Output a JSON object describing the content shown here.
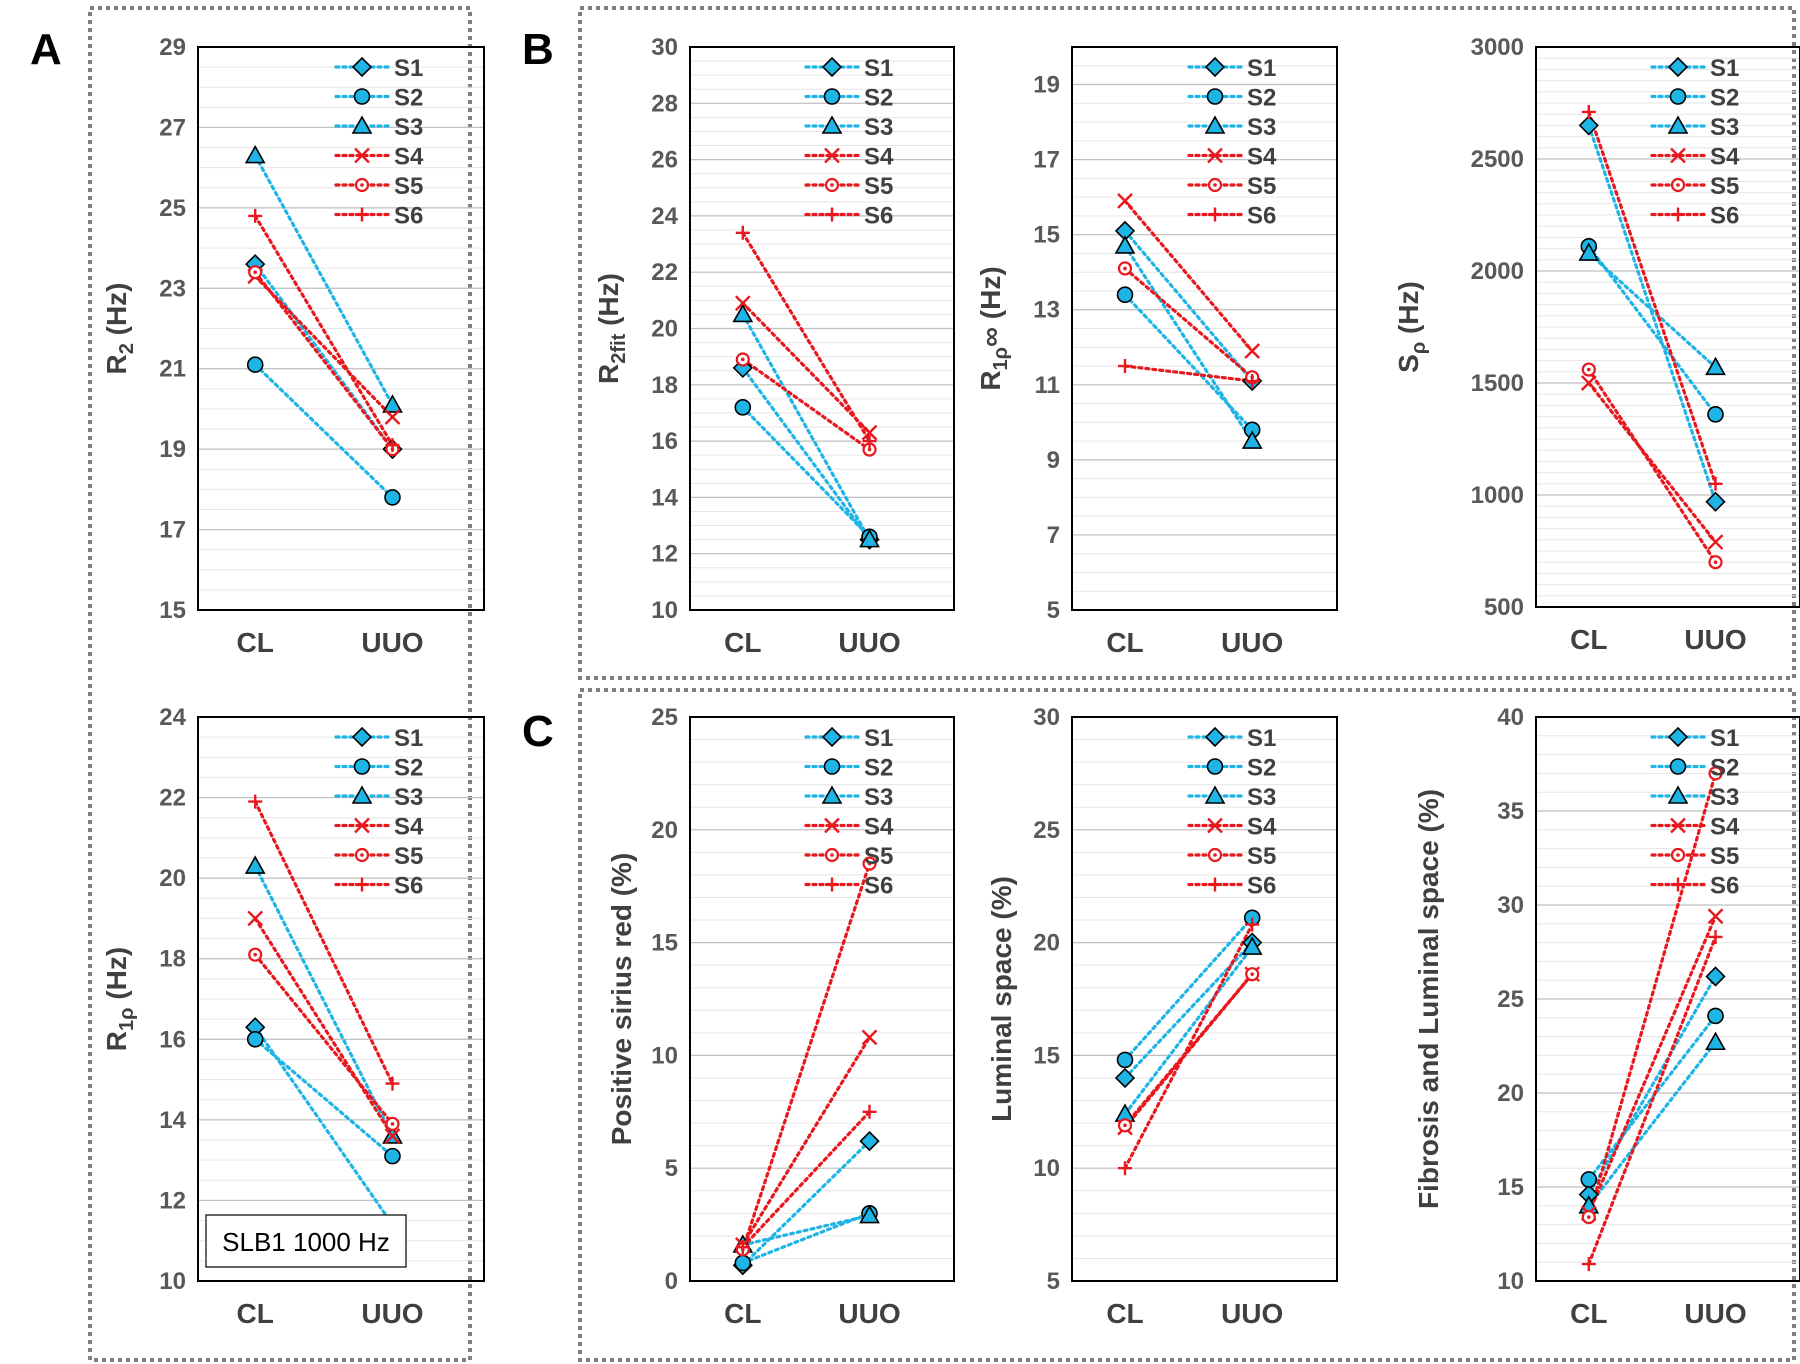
{
  "figure": {
    "panel_labels": [
      "A",
      "B",
      "C"
    ],
    "categories": [
      "CL",
      "UUO"
    ],
    "annotation": "SLB1 1000 Hz",
    "series": [
      {
        "name": "S1",
        "color": "#1fb4e6",
        "marker": "diamond"
      },
      {
        "name": "S2",
        "color": "#1fb4e6",
        "marker": "circle"
      },
      {
        "name": "S3",
        "color": "#1fb4e6",
        "marker": "triangle"
      },
      {
        "name": "S4",
        "color": "#e8191e",
        "marker": "x"
      },
      {
        "name": "S5",
        "color": "#e8191e",
        "marker": "open-circle"
      },
      {
        "name": "S6",
        "color": "#e8191e",
        "marker": "plus"
      }
    ]
  },
  "chart_data": [
    {
      "type": "line",
      "panel": "A",
      "ylabel": "R2 (Hz)",
      "ylabel_main": "R",
      "ylabel_sub": "2",
      "ylabel_rest": " (Hz)",
      "categories": [
        "CL",
        "UUO"
      ],
      "ylim": [
        15,
        29
      ],
      "yticks": [
        15,
        17,
        19,
        21,
        23,
        25,
        27,
        29
      ],
      "minor_step": 0.5,
      "series": [
        {
          "name": "S1",
          "values": [
            23.6,
            19.0
          ]
        },
        {
          "name": "S2",
          "values": [
            21.1,
            17.8
          ]
        },
        {
          "name": "S3",
          "values": [
            26.3,
            20.1
          ]
        },
        {
          "name": "S4",
          "values": [
            23.3,
            19.8
          ]
        },
        {
          "name": "S5",
          "values": [
            23.4,
            19.0
          ]
        },
        {
          "name": "S6",
          "values": [
            24.8,
            19.1
          ]
        }
      ]
    },
    {
      "type": "line",
      "panel": "A",
      "ylabel": "R1ρ (Hz)",
      "ylabel_main": "R",
      "ylabel_sub": "1ρ",
      "ylabel_rest": " (Hz)",
      "categories": [
        "CL",
        "UUO"
      ],
      "ylim": [
        10,
        24
      ],
      "yticks": [
        10,
        12,
        14,
        16,
        18,
        20,
        22,
        24
      ],
      "minor_step": 0.5,
      "annotation": true,
      "series": [
        {
          "name": "S1",
          "values": [
            16.3,
            11.4
          ]
        },
        {
          "name": "S2",
          "values": [
            16.0,
            13.1
          ]
        },
        {
          "name": "S3",
          "values": [
            20.3,
            13.6
          ]
        },
        {
          "name": "S4",
          "values": [
            19.0,
            13.6
          ]
        },
        {
          "name": "S5",
          "values": [
            18.1,
            13.9
          ]
        },
        {
          "name": "S6",
          "values": [
            21.9,
            14.9
          ]
        }
      ]
    },
    {
      "type": "line",
      "panel": "B",
      "ylabel": "R2fit (Hz)",
      "ylabel_main": "R",
      "ylabel_sub": "2fit",
      "ylabel_rest": " (Hz)",
      "categories": [
        "CL",
        "UUO"
      ],
      "ylim": [
        10,
        30
      ],
      "yticks": [
        10,
        12,
        14,
        16,
        18,
        20,
        22,
        24,
        26,
        28,
        30
      ],
      "minor_step": 0.5,
      "series": [
        {
          "name": "S1",
          "values": [
            18.6,
            12.5
          ]
        },
        {
          "name": "S2",
          "values": [
            17.2,
            12.6
          ]
        },
        {
          "name": "S3",
          "values": [
            20.5,
            12.5
          ]
        },
        {
          "name": "S4",
          "values": [
            20.9,
            16.3
          ]
        },
        {
          "name": "S5",
          "values": [
            18.9,
            15.7
          ]
        },
        {
          "name": "S6",
          "values": [
            23.4,
            16.0
          ]
        }
      ]
    },
    {
      "type": "line",
      "panel": "B",
      "ylabel": "R1ρ∞ (Hz)",
      "ylabel_main": "R",
      "ylabel_sub": "1ρ",
      "ylabel_rest": "∞ (Hz)",
      "categories": [
        "CL",
        "UUO"
      ],
      "ylim": [
        5,
        20
      ],
      "yticks": [
        5,
        7,
        9,
        11,
        13,
        15,
        17,
        19
      ],
      "minor_step": 0.5,
      "series": [
        {
          "name": "S1",
          "values": [
            15.1,
            11.1
          ]
        },
        {
          "name": "S2",
          "values": [
            13.4,
            9.8
          ]
        },
        {
          "name": "S3",
          "values": [
            14.7,
            9.5
          ]
        },
        {
          "name": "S4",
          "values": [
            15.9,
            11.9
          ]
        },
        {
          "name": "S5",
          "values": [
            14.1,
            11.2
          ]
        },
        {
          "name": "S6",
          "values": [
            11.5,
            11.1
          ]
        }
      ]
    },
    {
      "type": "line",
      "panel": "B",
      "ylabel": "Sρ (Hz)",
      "ylabel_main": "S",
      "ylabel_sub": "ρ",
      "ylabel_rest": " (Hz)",
      "categories": [
        "CL",
        "UUO"
      ],
      "ylim": [
        500,
        3000
      ],
      "yticks": [
        500,
        1000,
        1500,
        2000,
        2500,
        3000
      ],
      "minor_step": 50,
      "series": [
        {
          "name": "S1",
          "values": [
            2650,
            970
          ]
        },
        {
          "name": "S2",
          "values": [
            2110,
            1360
          ]
        },
        {
          "name": "S3",
          "values": [
            2080,
            1570
          ]
        },
        {
          "name": "S4",
          "values": [
            1500,
            790
          ]
        },
        {
          "name": "S5",
          "values": [
            1560,
            700
          ]
        },
        {
          "name": "S6",
          "values": [
            2710,
            1050
          ]
        }
      ]
    },
    {
      "type": "line",
      "panel": "C",
      "ylabel": "Positive sirius red (%)",
      "ylabel_main": "Positive sirius red (%)",
      "ylabel_sub": "",
      "ylabel_rest": "",
      "categories": [
        "CL",
        "UUO"
      ],
      "ylim": [
        0,
        25
      ],
      "yticks": [
        0,
        5,
        10,
        15,
        20,
        25
      ],
      "minor_step": 1,
      "series": [
        {
          "name": "S1",
          "values": [
            0.7,
            6.2
          ]
        },
        {
          "name": "S2",
          "values": [
            0.8,
            3.0
          ]
        },
        {
          "name": "S3",
          "values": [
            1.6,
            2.9
          ]
        },
        {
          "name": "S4",
          "values": [
            1.6,
            10.8
          ]
        },
        {
          "name": "S5",
          "values": [
            1.4,
            18.5
          ]
        },
        {
          "name": "S6",
          "values": [
            1.5,
            7.5
          ]
        }
      ]
    },
    {
      "type": "line",
      "panel": "C",
      "ylabel": "Luminal space (%)",
      "ylabel_main": "Luminal space (%)",
      "ylabel_sub": "",
      "ylabel_rest": "",
      "categories": [
        "CL",
        "UUO"
      ],
      "ylim": [
        5,
        30
      ],
      "yticks": [
        5,
        10,
        15,
        20,
        25,
        30
      ],
      "minor_step": 1,
      "series": [
        {
          "name": "S1",
          "values": [
            14.0,
            20.0
          ]
        },
        {
          "name": "S2",
          "values": [
            14.8,
            21.1
          ]
        },
        {
          "name": "S3",
          "values": [
            12.4,
            19.8
          ]
        },
        {
          "name": "S4",
          "values": [
            11.8,
            18.6
          ]
        },
        {
          "name": "S5",
          "values": [
            11.9,
            18.6
          ]
        },
        {
          "name": "S6",
          "values": [
            10.0,
            20.8
          ]
        }
      ]
    },
    {
      "type": "line",
      "panel": "C",
      "ylabel": "Fibrosis and Luminal space (%)",
      "ylabel_main": "Fibrosis and Luminal space (%)",
      "ylabel_sub": "",
      "ylabel_rest": "",
      "categories": [
        "CL",
        "UUO"
      ],
      "ylim": [
        10,
        40
      ],
      "yticks": [
        10,
        15,
        20,
        25,
        30,
        35,
        40
      ],
      "minor_step": 1,
      "series": [
        {
          "name": "S1",
          "values": [
            14.6,
            26.2
          ]
        },
        {
          "name": "S2",
          "values": [
            15.4,
            24.1
          ]
        },
        {
          "name": "S3",
          "values": [
            14.0,
            22.7
          ]
        },
        {
          "name": "S4",
          "values": [
            13.6,
            29.4
          ]
        },
        {
          "name": "S5",
          "values": [
            13.4,
            37.0
          ]
        },
        {
          "name": "S6",
          "values": [
            10.9,
            28.3
          ]
        }
      ]
    }
  ]
}
